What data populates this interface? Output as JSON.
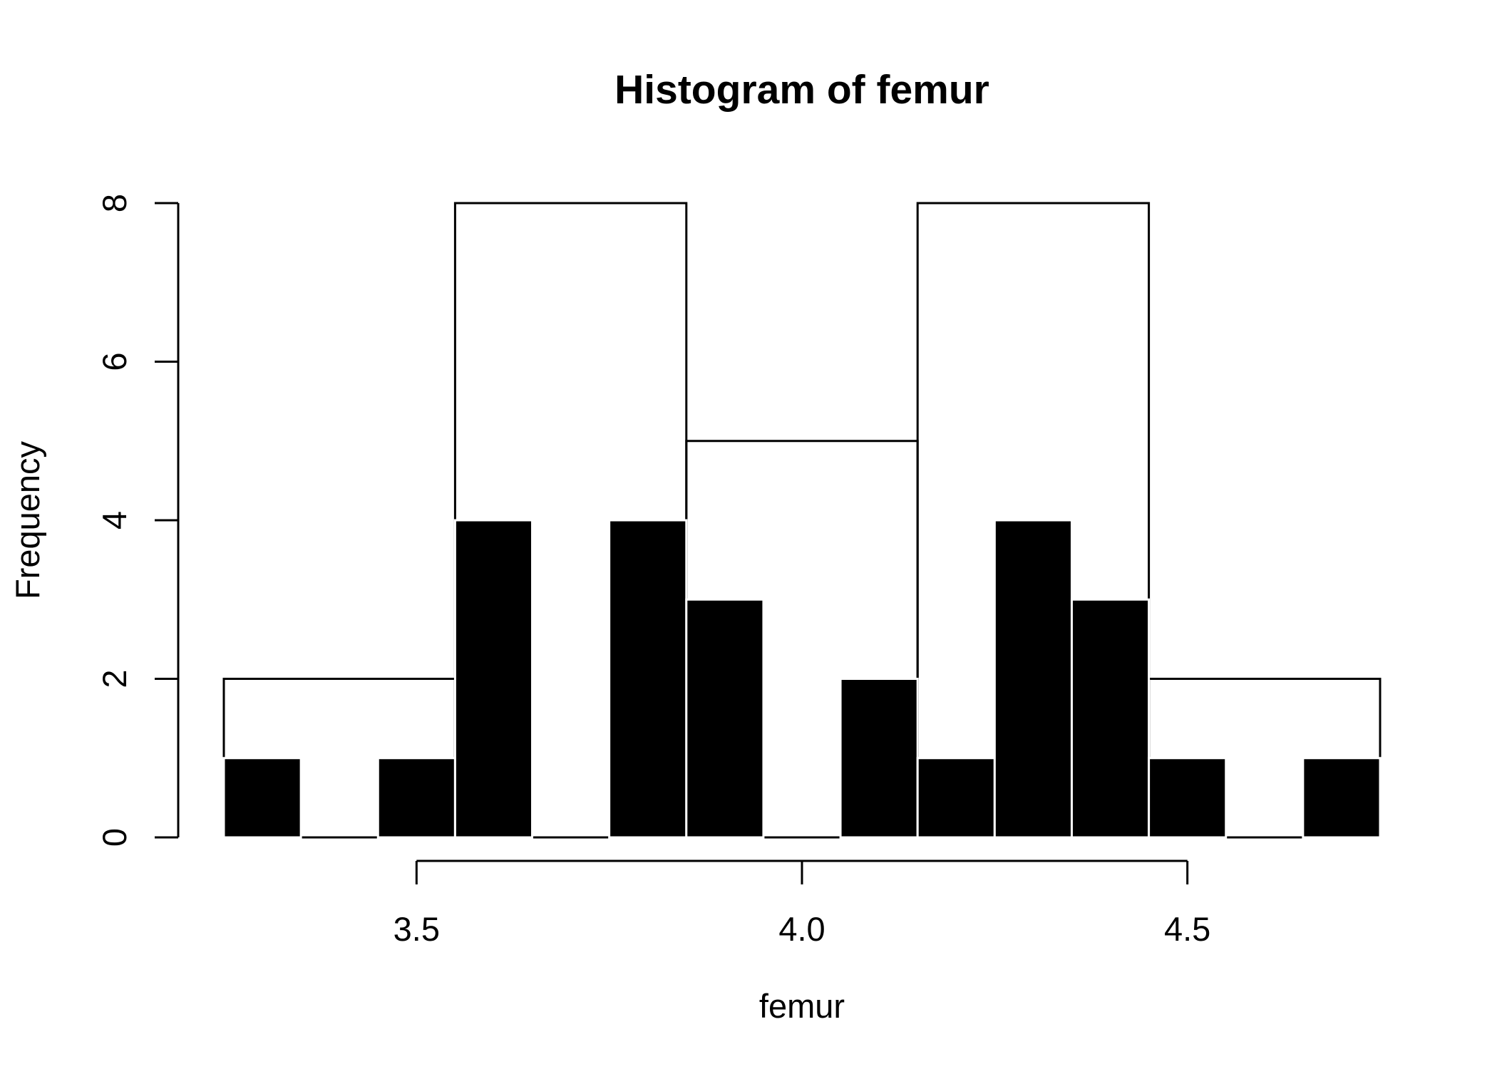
{
  "chart_data": {
    "type": "bar",
    "title": "Histogram of femur",
    "xlabel": "femur",
    "ylabel": "Frequency",
    "xlim": [
      3.25,
      4.75
    ],
    "ylim": [
      0,
      8
    ],
    "x_ticks": [
      {
        "value": 3.5,
        "label": "3.5"
      },
      {
        "value": 4.0,
        "label": "4.0"
      },
      {
        "value": 4.5,
        "label": "4.5"
      }
    ],
    "y_ticks": [
      {
        "value": 0,
        "label": "0"
      },
      {
        "value": 2,
        "label": "2"
      },
      {
        "value": 4,
        "label": "4"
      },
      {
        "value": 6,
        "label": "6"
      },
      {
        "value": 8,
        "label": "8"
      }
    ],
    "grid": false,
    "series": [
      {
        "style": "outline",
        "color": "#000000",
        "bins": [
          {
            "start": 3.25,
            "end": 3.55,
            "count": 2
          },
          {
            "start": 3.55,
            "end": 3.85,
            "count": 8
          },
          {
            "start": 3.85,
            "end": 4.15,
            "count": 5
          },
          {
            "start": 4.15,
            "end": 4.45,
            "count": 8
          },
          {
            "start": 4.45,
            "end": 4.75,
            "count": 2
          }
        ]
      },
      {
        "style": "filled",
        "color": "#000000",
        "bins": [
          {
            "start": 3.25,
            "end": 3.35,
            "count": 1
          },
          {
            "start": 3.35,
            "end": 3.45,
            "count": 0
          },
          {
            "start": 3.45,
            "end": 3.55,
            "count": 1
          },
          {
            "start": 3.55,
            "end": 3.65,
            "count": 4
          },
          {
            "start": 3.65,
            "end": 3.75,
            "count": 0
          },
          {
            "start": 3.75,
            "end": 3.85,
            "count": 4
          },
          {
            "start": 3.85,
            "end": 3.95,
            "count": 3
          },
          {
            "start": 3.95,
            "end": 4.05,
            "count": 0
          },
          {
            "start": 4.05,
            "end": 4.15,
            "count": 2
          },
          {
            "start": 4.15,
            "end": 4.25,
            "count": 1
          },
          {
            "start": 4.25,
            "end": 4.35,
            "count": 4
          },
          {
            "start": 4.35,
            "end": 4.45,
            "count": 3
          },
          {
            "start": 4.45,
            "end": 4.55,
            "count": 1
          },
          {
            "start": 4.55,
            "end": 4.65,
            "count": 0
          },
          {
            "start": 4.65,
            "end": 4.75,
            "count": 1
          }
        ]
      }
    ]
  }
}
